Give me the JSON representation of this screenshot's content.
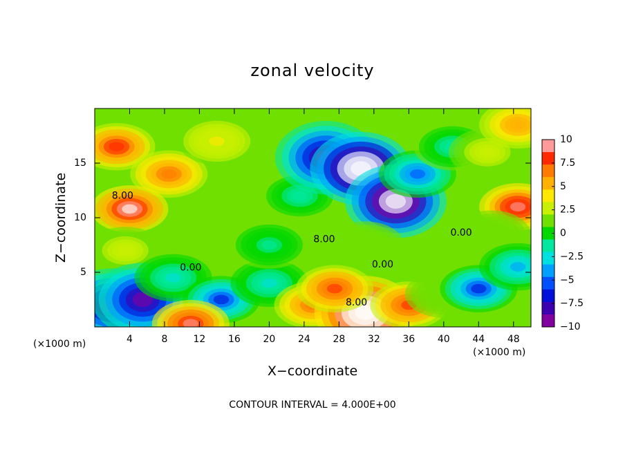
{
  "chart_data": {
    "type": "heatmap",
    "title": "zonal velocity",
    "xlabel": "X−coordinate",
    "ylabel": "Z−coordinate",
    "x_unit": "(×1000 m)",
    "y_unit": "(×1000 m)",
    "footer": "CONTOUR INTERVAL = 4.000E+00",
    "xlim": [
      0,
      50
    ],
    "ylim": [
      0,
      20
    ],
    "x_ticks": [
      4,
      8,
      12,
      16,
      20,
      24,
      28,
      32,
      36,
      40,
      44,
      48
    ],
    "y_ticks": [
      5,
      10,
      15
    ],
    "contour_interval": 4.0,
    "contour_labels": [
      {
        "text": "8.00",
        "x": 3.2,
        "z": 12.0
      },
      {
        "text": "0.00",
        "x": 11.0,
        "z": 5.4
      },
      {
        "text": "8.00",
        "x": 26.3,
        "z": 8.0
      },
      {
        "text": "0.00",
        "x": 33.0,
        "z": 5.7
      },
      {
        "text": "8.00",
        "x": 30.0,
        "z": 2.2
      },
      {
        "text": "0.00",
        "x": 42.0,
        "z": 8.6
      }
    ],
    "colorbar": {
      "min": -10,
      "max": 10,
      "tick_labels": [
        "10",
        "7.5",
        "5",
        "2.5",
        "0",
        "−2.5",
        "−5",
        "−7.5",
        "−10"
      ],
      "tick_values": [
        10,
        7.5,
        5,
        2.5,
        0,
        -2.5,
        -5,
        -7.5,
        -10
      ],
      "colors": [
        "#ffffff",
        "#ff9a9a",
        "#ff2a00",
        "#ff7a00",
        "#ffb000",
        "#ffe800",
        "#c8f000",
        "#70e000",
        "#00d800",
        "#00e8a0",
        "#00e0e0",
        "#00a0ff",
        "#0050ff",
        "#0010d8",
        "#3c00b0",
        "#8000a0",
        "#ffffff"
      ]
    },
    "features": [
      {
        "x": 2.5,
        "z": 16.5,
        "value": 8.5
      },
      {
        "x": 8.5,
        "z": 14.0,
        "value": 7.0
      },
      {
        "x": 4.0,
        "z": 10.8,
        "value": 10.5
      },
      {
        "x": 3.5,
        "z": 7.0,
        "value": 2.5
      },
      {
        "x": 14.0,
        "z": 17.0,
        "value": 3.5
      },
      {
        "x": 17.0,
        "z": 12.0,
        "value": 1.0
      },
      {
        "x": 23.5,
        "z": 12.0,
        "value": -1.5
      },
      {
        "x": 26.5,
        "z": 15.5,
        "value": -9.5
      },
      {
        "x": 30.5,
        "z": 14.5,
        "value": -14.0
      },
      {
        "x": 34.5,
        "z": 11.5,
        "value": -13.0
      },
      {
        "x": 37.0,
        "z": 14.0,
        "value": -5.0
      },
      {
        "x": 41.0,
        "z": 16.5,
        "value": -1.5
      },
      {
        "x": 45.0,
        "z": 16.0,
        "value": 2.5
      },
      {
        "x": 48.5,
        "z": 18.5,
        "value": 6.0
      },
      {
        "x": 48.5,
        "z": 11.0,
        "value": 9.5
      },
      {
        "x": 45.5,
        "z": 8.5,
        "value": 1.5
      },
      {
        "x": 31.0,
        "z": 7.5,
        "value": 1.0
      },
      {
        "x": 2.0,
        "z": 2.0,
        "value": -9.5
      },
      {
        "x": 5.5,
        "z": 2.5,
        "value": -9.0
      },
      {
        "x": 9.0,
        "z": 4.5,
        "value": -2.0
      },
      {
        "x": 14.5,
        "z": 2.5,
        "value": -6.0
      },
      {
        "x": 20.0,
        "z": 4.0,
        "value": -2.0
      },
      {
        "x": 25.0,
        "z": 2.0,
        "value": 7.0
      },
      {
        "x": 31.0,
        "z": 1.3,
        "value": 13.0
      },
      {
        "x": 27.5,
        "z": 3.5,
        "value": 8.0
      },
      {
        "x": 36.0,
        "z": 2.0,
        "value": 8.0
      },
      {
        "x": 40.0,
        "z": 3.0,
        "value": 2.0
      },
      {
        "x": 44.0,
        "z": 3.5,
        "value": -6.0
      },
      {
        "x": 48.5,
        "z": 5.5,
        "value": -4.0
      },
      {
        "x": 20.0,
        "z": 7.5,
        "value": -1.0
      },
      {
        "x": 11.0,
        "z": 0.3,
        "value": 9.0
      }
    ]
  }
}
